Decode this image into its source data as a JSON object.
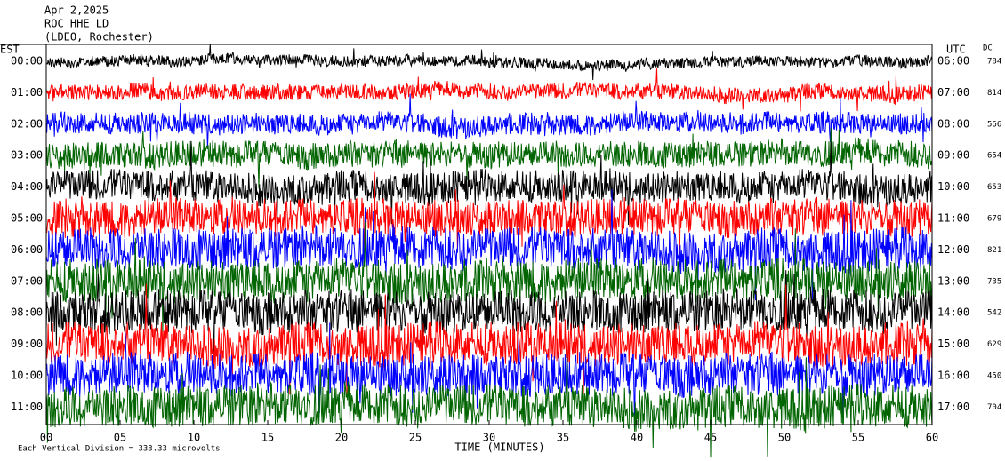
{
  "chart_data": {
    "type": "helicorder",
    "title": [
      "Apr 2,2025",
      "ROC HHE LD",
      "(LDEO, Rochester)"
    ],
    "left_axis_label": "EST",
    "right_axis_label": "UTC",
    "dc_label": "DC",
    "x_label": "TIME (MINUTES)",
    "xlim": [
      0,
      60
    ],
    "xticks": [
      {
        "value": 0,
        "label": "00"
      },
      {
        "value": 5,
        "label": "05"
      },
      10,
      15,
      20,
      25,
      30,
      35,
      40,
      45,
      50,
      55,
      60
    ],
    "rows": [
      {
        "local": "00:00",
        "utc": "06:00",
        "dc": 784,
        "color": "#000000"
      },
      {
        "local": "01:00",
        "utc": "07:00",
        "dc": 814,
        "color": "#ff0000"
      },
      {
        "local": "02:00",
        "utc": "08:00",
        "dc": 566,
        "color": "#0000ff"
      },
      {
        "local": "03:00",
        "utc": "09:00",
        "dc": 654,
        "color": "#006400"
      },
      {
        "local": "04:00",
        "utc": "10:00",
        "dc": 653,
        "color": "#000000"
      },
      {
        "local": "05:00",
        "utc": "11:00",
        "dc": 679,
        "color": "#ff0000"
      },
      {
        "local": "06:00",
        "utc": "12:00",
        "dc": 821,
        "color": "#0000ff"
      },
      {
        "local": "07:00",
        "utc": "13:00",
        "dc": 735,
        "color": "#006400"
      },
      {
        "local": "08:00",
        "utc": "14:00",
        "dc": 542,
        "color": "#000000"
      },
      {
        "local": "09:00",
        "utc": "15:00",
        "dc": 629,
        "color": "#ff0000"
      },
      {
        "local": "10:00",
        "utc": "16:00",
        "dc": 450,
        "color": "#0000ff"
      },
      {
        "local": "11:00",
        "utc": "17:00",
        "dc": 704,
        "color": "#006400"
      }
    ],
    "note": "Each Vertical Division = 333.33 microvolts"
  }
}
